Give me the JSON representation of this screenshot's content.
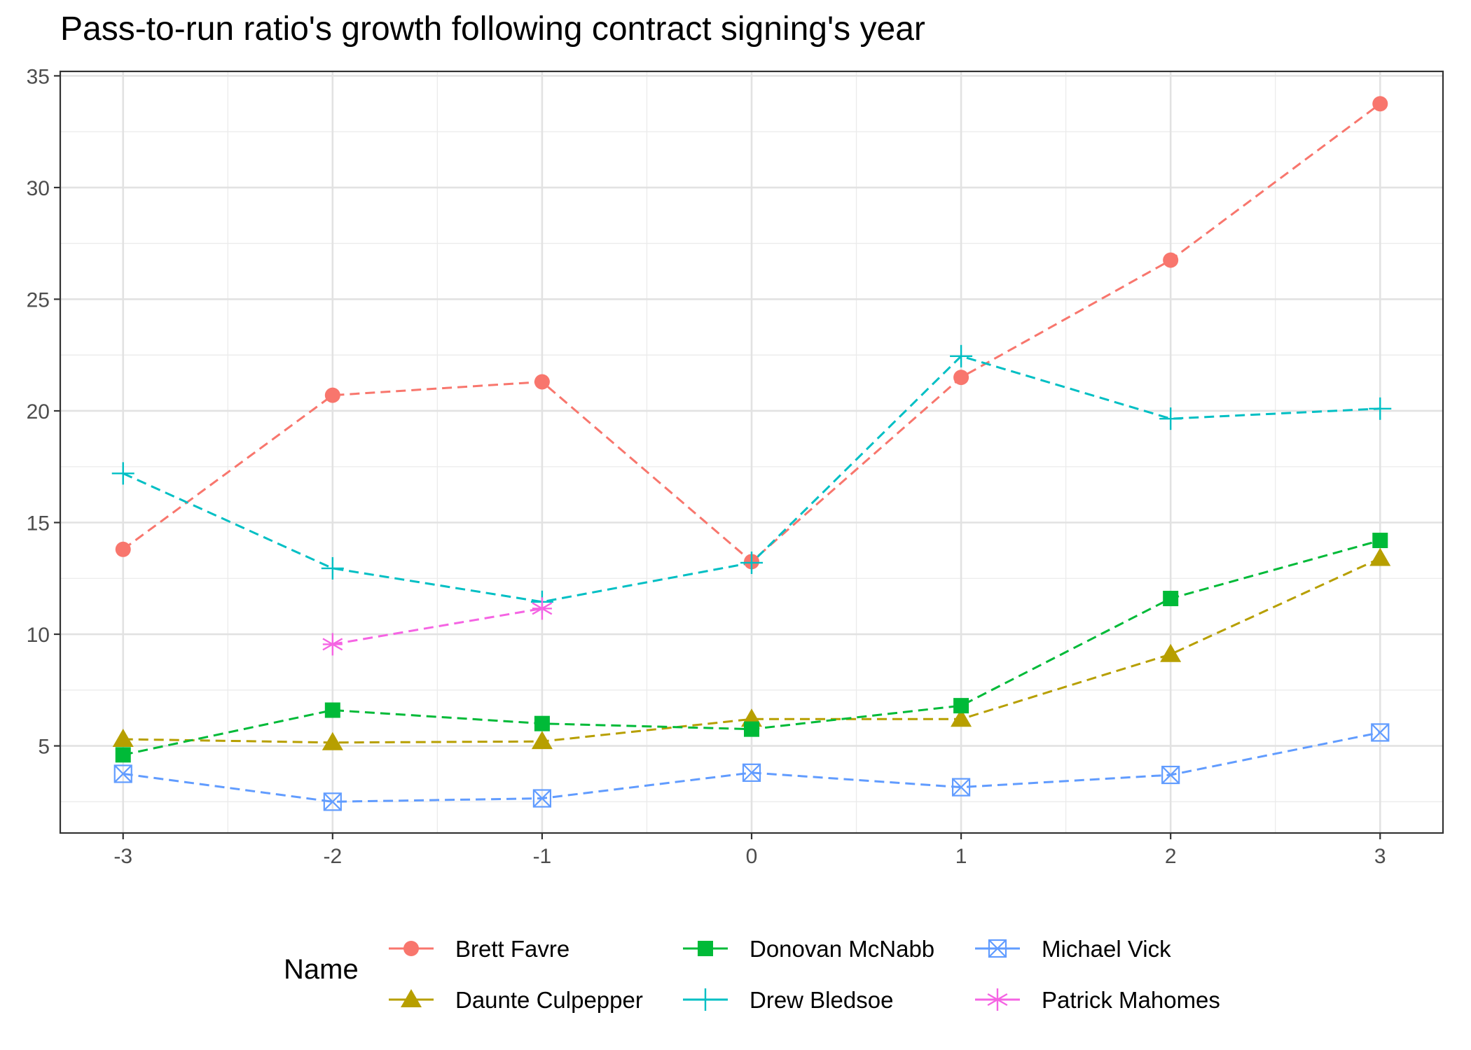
{
  "chart_data": {
    "type": "line",
    "title": "Pass-to-run ratio's growth following contract signing's year",
    "xlabel": "",
    "ylabel": "",
    "x": [
      -3,
      -2,
      -1,
      0,
      1,
      2,
      3
    ],
    "x_ticks": [
      -3,
      -2,
      -1,
      0,
      1,
      2,
      3
    ],
    "y_ticks": [
      5,
      10,
      15,
      20,
      25,
      30,
      35
    ],
    "xlim": [
      -3.3,
      3.3
    ],
    "ylim": [
      1.1,
      35.2
    ],
    "grid": true,
    "line_style": "dashed",
    "legend": {
      "title": "Name",
      "position": "bottom"
    },
    "series": [
      {
        "name": "Brett Favre",
        "color": "#F8766D",
        "marker": "circle",
        "x": [
          -3,
          -2,
          -1,
          0,
          1,
          2,
          3
        ],
        "values": [
          13.8,
          20.7,
          21.3,
          13.25,
          21.5,
          26.75,
          33.75
        ]
      },
      {
        "name": "Daunte Culpepper",
        "color": "#B79F00",
        "marker": "triangle",
        "x": [
          -3,
          -2,
          -1,
          0,
          1,
          2,
          3
        ],
        "values": [
          5.3,
          5.15,
          5.2,
          6.2,
          6.2,
          9.1,
          13.4
        ]
      },
      {
        "name": "Donovan McNabb",
        "color": "#00BA38",
        "marker": "square",
        "x": [
          -3,
          -2,
          -1,
          0,
          1,
          2,
          3
        ],
        "values": [
          4.6,
          6.6,
          6.0,
          5.75,
          6.8,
          11.6,
          14.2
        ]
      },
      {
        "name": "Drew Bledsoe",
        "color": "#00BFC4",
        "marker": "plus",
        "x": [
          -3,
          -2,
          -1,
          0,
          1,
          2,
          3
        ],
        "values": [
          17.2,
          12.95,
          11.45,
          13.2,
          22.45,
          19.65,
          20.1
        ]
      },
      {
        "name": "Michael Vick",
        "color": "#619CFF",
        "marker": "boxcross",
        "x": [
          -3,
          -2,
          -1,
          0,
          1,
          2,
          3
        ],
        "values": [
          3.75,
          2.5,
          2.65,
          3.8,
          3.15,
          3.7,
          5.6
        ]
      },
      {
        "name": "Patrick Mahomes",
        "color": "#F564E3",
        "marker": "asterisk",
        "x": [
          -2,
          -1
        ],
        "values": [
          9.55,
          11.15
        ]
      }
    ]
  }
}
